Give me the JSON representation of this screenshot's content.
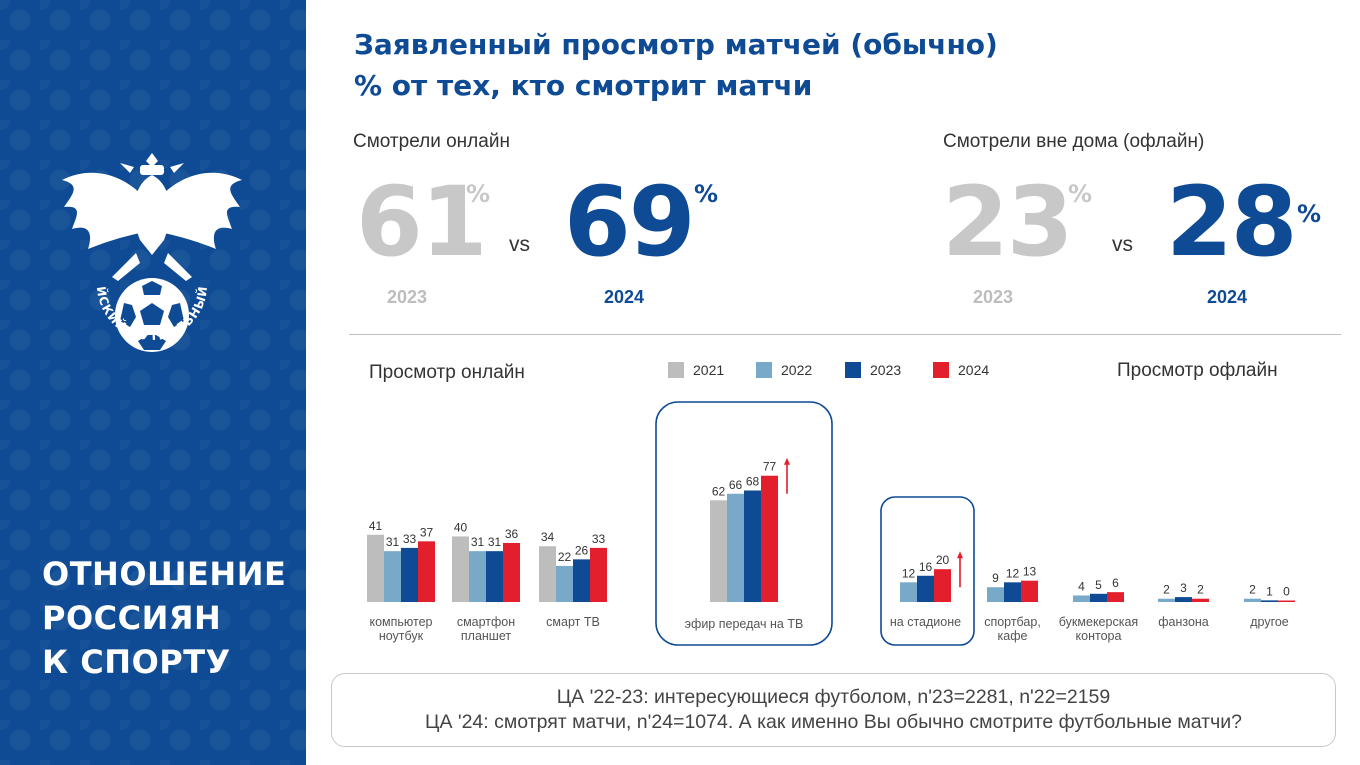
{
  "sidebar": {
    "title_lines": [
      "ОТНОШЕНИЕ",
      "РОССИЯН",
      "К СПОРТУ"
    ],
    "emblem_text": "РОССИЙСКИЙ ФУТБОЛЬНЫЙ СОЮЗ"
  },
  "header": {
    "title_line1": "Заявленный просмотр матчей (обычно)",
    "title_line2": "% от тех, кто смотрит матчи"
  },
  "kpi_online": {
    "label": "Смотрели онлайн",
    "old_value": "61",
    "new_value": "69",
    "old_year": "2023",
    "new_year": "2024",
    "pct": "%",
    "vs": "vs"
  },
  "kpi_offline": {
    "label": "Смотрели вне дома (офлайн)",
    "old_value": "23",
    "new_value": "28",
    "old_year": "2023",
    "new_year": "2024",
    "pct": "%",
    "vs": "vs"
  },
  "section_online": "Просмотр онлайн",
  "section_offline": "Просмотр офлайн",
  "colors": {
    "2021": "#bdbdbd",
    "2022": "#78a9c8",
    "2023": "#0e4b94",
    "2024": "#e31e2d",
    "brand": "#0e4b94"
  },
  "chart_data": {
    "type": "bar",
    "series": [
      {
        "name": "2021",
        "values": [
          41,
          40,
          34,
          62,
          null,
          null,
          null,
          null,
          null
        ]
      },
      {
        "name": "2022",
        "values": [
          31,
          31,
          22,
          66,
          12,
          9,
          4,
          2,
          2
        ]
      },
      {
        "name": "2023",
        "values": [
          33,
          31,
          26,
          68,
          16,
          12,
          5,
          3,
          1
        ]
      },
      {
        "name": "2024",
        "values": [
          37,
          36,
          33,
          77,
          20,
          13,
          6,
          2,
          0
        ]
      }
    ],
    "categories": [
      "компьютер ноутбук",
      "смартфон планшет",
      "смарт ТВ",
      "эфир передач на ТВ",
      "на стадионе",
      "спортбар, кафе",
      "букмекерская контора",
      "фанзона",
      "другое"
    ],
    "category_lines": [
      [
        "компьютер",
        "ноутбук"
      ],
      [
        "смартфон",
        "планшет"
      ],
      [
        "смарт ТВ"
      ],
      [
        "эфир передач на ТВ"
      ],
      [
        "на стадионе"
      ],
      [
        "спортбар,",
        "кафе"
      ],
      [
        "букмекерская",
        "контора"
      ],
      [
        "фанзона"
      ],
      [
        "другое"
      ]
    ],
    "highlighted": [
      "эфир передач на ТВ",
      "на стадионе"
    ],
    "growth_arrows": [
      "эфир передач на ТВ",
      "на стадионе"
    ]
  },
  "footnote": {
    "line1": "ЦА '22-23: интересующиеся футболом, n'23=2281, n'22=2159",
    "line2": "ЦА '24: смотрят матчи, n'24=1074. А как именно Вы обычно смотрите футбольные матчи?"
  }
}
